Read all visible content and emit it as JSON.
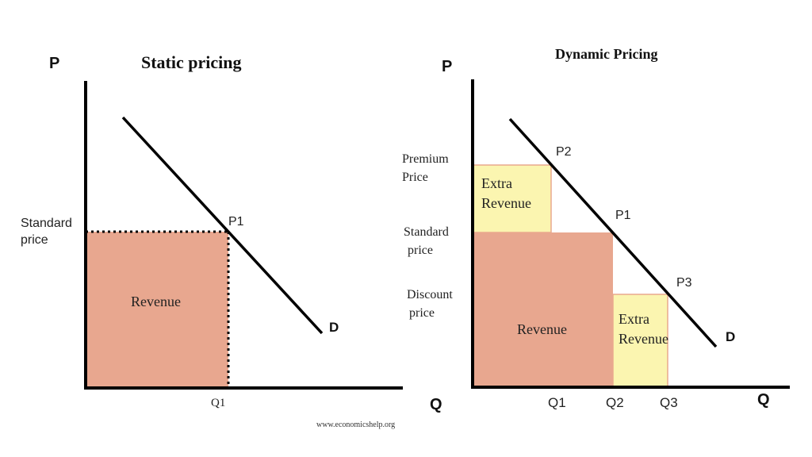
{
  "static_panel": {
    "title": "Static pricing",
    "p_axis_label": "P",
    "q_axis_label": "Q",
    "price_label_line1": "Standard",
    "price_label_line2": "price",
    "point_label": "P1",
    "demand_label": "D",
    "revenue_label": "Revenue",
    "q_tick_label": "Q1"
  },
  "dynamic_panel": {
    "title": "Dynamic Pricing",
    "p_axis_label": "P",
    "q_axis_label": "Q",
    "premium_price_line1": "Premium",
    "premium_price_line2": "Price",
    "standard_price_line1": "Standard",
    "standard_price_line2": "price",
    "discount_price_line1": "Discount",
    "discount_price_line2": "price",
    "point_p2_label": "P2",
    "point_p1_label": "P1",
    "point_p3_label": "P3",
    "demand_label": "D",
    "revenue_label": "Revenue",
    "extra_revenue_top_line1": "Extra",
    "extra_revenue_top_line2": "Revenue",
    "extra_revenue_bottom_line1": "Extra",
    "extra_revenue_bottom_line2": "Revenue",
    "q1_label": "Q1",
    "q2_label": "Q2",
    "q3_label": "Q3"
  },
  "footer": {
    "source": "www.economicshelp.org"
  },
  "colors": {
    "revenue_fill": "#E8A78F",
    "extra_revenue_fill": "#FBF5B0",
    "extra_revenue_border": "#E9A88E",
    "line": "#000000"
  }
}
